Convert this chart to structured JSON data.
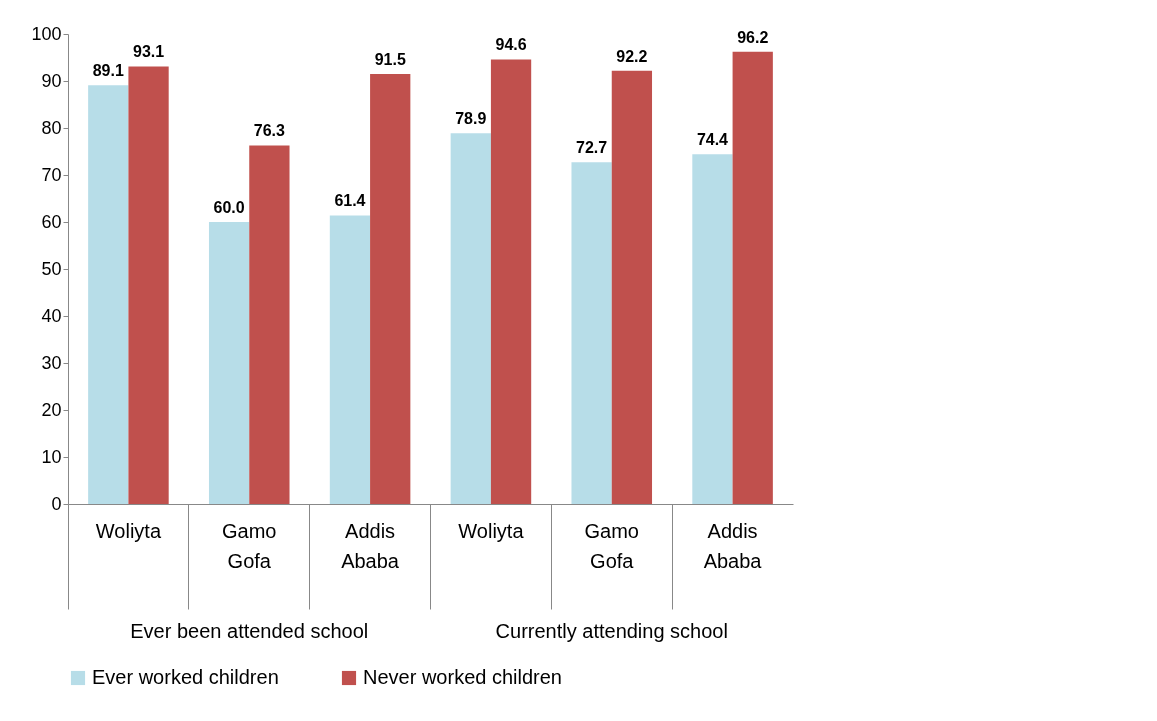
{
  "chart_data": {
    "type": "bar",
    "categories": [
      "Woliyta",
      "Gamo Gofa",
      "Addis Ababa",
      "Woliyta",
      "Gamo Gofa",
      "Addis Ababa"
    ],
    "series": [
      {
        "name": "Ever worked children",
        "color": "#b7dde8",
        "values": [
          89.1,
          60.0,
          61.4,
          78.9,
          72.7,
          74.4
        ],
        "value_labels": [
          "89.1",
          "60.0",
          "61.4",
          "78.9",
          "72.7",
          "74.4"
        ]
      },
      {
        "name": "Never worked children",
        "color": "#c0504d",
        "values": [
          93.1,
          76.3,
          91.5,
          94.6,
          92.2,
          96.2
        ],
        "value_labels": [
          "93.1",
          "76.3",
          "91.5",
          "94.6",
          "92.2",
          "96.2"
        ]
      }
    ],
    "ylim": [
      0,
      100
    ],
    "yticks": [
      0,
      10,
      20,
      30,
      40,
      50,
      60,
      70,
      80,
      90,
      100
    ],
    "grid": false,
    "legend": "bottom",
    "annotations": [
      "Ever been attended school",
      "Currently attending school"
    ]
  }
}
